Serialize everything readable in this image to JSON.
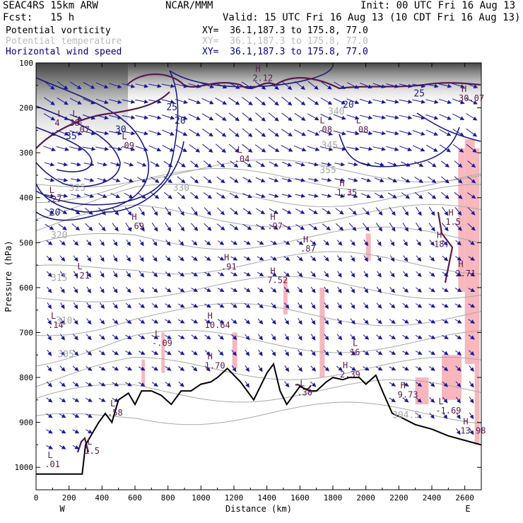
{
  "header": {
    "model": "SEAC4RS 15km ARW",
    "org": "NCAR/MMM",
    "init": "Init: 00 UTC Fri 16 Aug 13",
    "fcst": "Fcst:   15 h",
    "valid": "Valid: 15 UTC Fri 16 Aug 13 (10 CDT Fri 16 Aug 13)"
  },
  "legend": [
    {
      "name": "Potential vorticity",
      "xy": "XY=  36.1,187.3 to 175.8, 77.0",
      "color": "#000000",
      "xycolor": "#000000"
    },
    {
      "name": "Potential temperature",
      "xy": "XY=  36.1,187.3 to 175.8, 77.0",
      "color": "#bbbbbb",
      "xycolor": "#bbbbbb"
    },
    {
      "name": "Horizontal wind speed",
      "xy": "XY=  36.1,187.3 to 175.8, 77.0",
      "color": "#000080",
      "xycolor": "#000080"
    }
  ],
  "colors": {
    "pv": "#5a1a4a",
    "pv_fill": "#f7b7bd",
    "theta": "#a8a8a8",
    "wind": "#1a1a99",
    "terrain": "#000000"
  },
  "chart_data": {
    "type": "cross-section",
    "xlabel": "Distance (km)",
    "ylabel": "Pressure (hPa)",
    "xlim": [
      0,
      2700
    ],
    "ylim": [
      1050,
      100
    ],
    "x_ticks": [
      "0",
      "200",
      "400",
      "600",
      "800",
      "1000",
      "1200",
      "1400",
      "1600",
      "1800",
      "2000",
      "2200",
      "2400",
      "2600"
    ],
    "y_ticks": [
      "100",
      "200",
      "300",
      "400",
      "500",
      "600",
      "700",
      "800",
      "900",
      "1000"
    ],
    "x_end_labels": {
      "left": "W",
      "right": "E"
    },
    "terrain": [
      [
        0,
        1015
      ],
      [
        280,
        1015
      ],
      [
        300,
        950
      ],
      [
        380,
        900
      ],
      [
        420,
        880
      ],
      [
        460,
        900
      ],
      [
        500,
        850
      ],
      [
        560,
        835
      ],
      [
        600,
        860
      ],
      [
        640,
        830
      ],
      [
        700,
        830
      ],
      [
        760,
        840
      ],
      [
        820,
        860
      ],
      [
        880,
        830
      ],
      [
        940,
        830
      ],
      [
        1000,
        815
      ],
      [
        1060,
        810
      ],
      [
        1100,
        800
      ],
      [
        1160,
        780
      ],
      [
        1200,
        795
      ],
      [
        1240,
        810
      ],
      [
        1280,
        830
      ],
      [
        1320,
        850
      ],
      [
        1360,
        820
      ],
      [
        1400,
        790
      ],
      [
        1440,
        770
      ],
      [
        1480,
        830
      ],
      [
        1520,
        860
      ],
      [
        1560,
        840
      ],
      [
        1600,
        820
      ],
      [
        1660,
        830
      ],
      [
        1700,
        830
      ],
      [
        1760,
        810
      ],
      [
        1800,
        800
      ],
      [
        1860,
        805
      ],
      [
        1900,
        800
      ],
      [
        1960,
        800
      ],
      [
        2000,
        815
      ],
      [
        2060,
        795
      ],
      [
        2100,
        830
      ],
      [
        2160,
        880
      ],
      [
        2220,
        890
      ],
      [
        2300,
        905
      ],
      [
        2400,
        915
      ],
      [
        2500,
        930
      ],
      [
        2600,
        940
      ],
      [
        2700,
        950
      ]
    ],
    "theta_labels": [
      {
        "text": "330",
        "x": 830,
        "p": 385
      },
      {
        "text": "325",
        "x": 200,
        "p": 385
      },
      {
        "text": "320",
        "x": 90,
        "p": 490
      },
      {
        "text": "315",
        "x": 90,
        "p": 585
      },
      {
        "text": "310",
        "x": 120,
        "p": 680
      },
      {
        "text": "305",
        "x": 130,
        "p": 755
      },
      {
        "text": "304.5",
        "x": 2160,
        "p": 890
      },
      {
        "text": "340",
        "x": 1770,
        "p": 215
      },
      {
        "text": "345",
        "x": 1730,
        "p": 290
      },
      {
        "text": "355",
        "x": 1720,
        "p": 345
      }
    ],
    "wind_labels": [
      {
        "text": "20",
        "x": 80,
        "p": 440
      },
      {
        "text": "35",
        "x": 180,
        "p": 270
      },
      {
        "text": "30",
        "x": 480,
        "p": 255
      },
      {
        "text": "20",
        "x": 840,
        "p": 235
      },
      {
        "text": "25",
        "x": 790,
        "p": 205
      },
      {
        "text": "20",
        "x": 1860,
        "p": 200
      },
      {
        "text": "25",
        "x": 2290,
        "p": 175
      }
    ],
    "hl_marks": [
      {
        "label": "L",
        "value": ".27",
        "x": 80,
        "p": 410
      },
      {
        "label": "L",
        "value": ".07",
        "x": 250,
        "p": 255
      },
      {
        "label": "L",
        "value": ".09",
        "x": 520,
        "p": 290
      },
      {
        "label": "H",
        "value": ".69",
        "x": 580,
        "p": 470
      },
      {
        "label": "L",
        "value": ".21",
        "x": 250,
        "p": 580
      },
      {
        "label": "L",
        "value": ".14",
        "x": 90,
        "p": 690
      },
      {
        "label": "L",
        "value": "-.09",
        "x": 720,
        "p": 730
      },
      {
        "label": "H",
        "value": "1.70",
        "x": 1040,
        "p": 780
      },
      {
        "label": "H",
        "value": "10.64",
        "x": 1040,
        "p": 690
      },
      {
        "label": "H",
        "value": ".91",
        "x": 1140,
        "p": 560
      },
      {
        "label": "H",
        "value": ".97",
        "x": 1420,
        "p": 470
      },
      {
        "label": "H",
        "value": "7.52",
        "x": 1420,
        "p": 590
      },
      {
        "label": "H",
        "value": ".87",
        "x": 1620,
        "p": 520
      },
      {
        "label": "H",
        "value": "1.35",
        "x": 1840,
        "p": 395
      },
      {
        "label": "L",
        "value": ".08",
        "x": 1720,
        "p": 255
      },
      {
        "label": "L",
        "value": ".08",
        "x": 1940,
        "p": 255
      },
      {
        "label": "L",
        "value": ".04",
        "x": 1220,
        "p": 320
      },
      {
        "label": "H",
        "value": "2.12",
        "x": 1330,
        "p": 140
      },
      {
        "label": "L",
        "value": "1.5",
        "x": 310,
        "p": 970
      },
      {
        "label": "L",
        "value": ".01",
        "x": 70,
        "p": 1000
      },
      {
        "label": "L",
        "value": ".58",
        "x": 450,
        "p": 885
      },
      {
        "label": "H",
        "value": "2.39",
        "x": 1860,
        "p": 800
      },
      {
        "label": "L",
        "value": "16",
        "x": 1920,
        "p": 750
      },
      {
        "label": "H",
        "value": "9.73",
        "x": 2210,
        "p": 845
      },
      {
        "label": "L",
        "value": "-1.69",
        "x": 2440,
        "p": 880
      },
      {
        "label": "H",
        "value": "13.98",
        "x": 2590,
        "p": 925
      },
      {
        "label": "H",
        "value": "2.71",
        "x": 2560,
        "p": 575
      },
      {
        "label": "H",
        "value": "18.",
        "x": 2430,
        "p": 510
      },
      {
        "label": "H",
        "value": "1.5",
        "x": 2500,
        "p": 460
      },
      {
        "label": "L",
        "value": ".30",
        "x": 1600,
        "p": 840
      },
      {
        "label": "H",
        "value": "30.07",
        "x": 2580,
        "p": 185
      },
      {
        "label": "L",
        "value": "38",
        "x": 220,
        "p": 240
      },
      {
        "label": "L",
        "value": "4",
        "x": 130,
        "p": 240
      }
    ]
  }
}
